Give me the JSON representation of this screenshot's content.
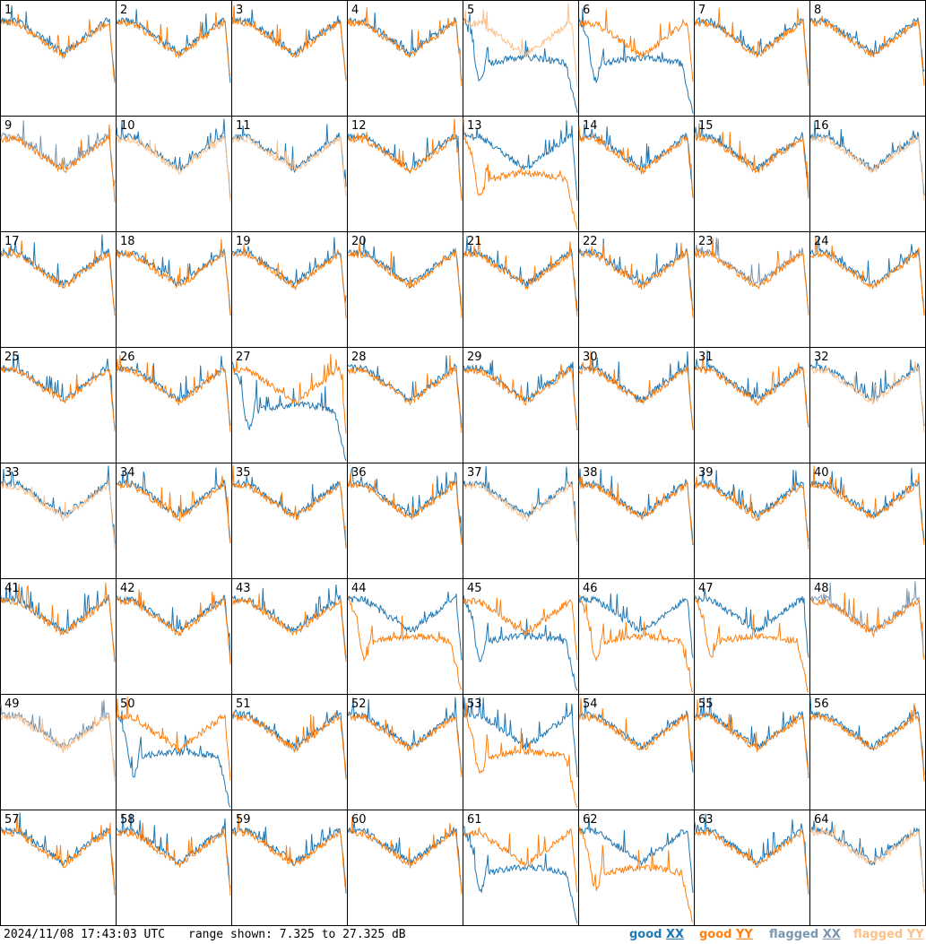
{
  "footer": {
    "timestamp": "2024/11/08 17:43:03 UTC",
    "range_text": "range shown: 7.325 to 27.325 dB"
  },
  "legend": {
    "good_xx": {
      "word": "good",
      "pol": "XX",
      "color": "#1f77b4"
    },
    "good_yy": {
      "word": "good",
      "pol": "YY",
      "color": "#ff7f0e"
    },
    "flagged_xx": {
      "word": "flagged",
      "pol": "XX",
      "color": "#7a96b0"
    },
    "flagged_yy": {
      "word": "flagged",
      "pol": "YY",
      "color": "#fdc08a"
    }
  },
  "chart_data": {
    "type": "line",
    "panels": 64,
    "layout": "8x8 grid",
    "y_range_db": [
      7.325,
      27.325
    ],
    "panel_labels": [
      "1",
      "2",
      "3",
      "4",
      "5",
      "6",
      "7",
      "8",
      "9",
      "10",
      "11",
      "12",
      "13",
      "14",
      "15",
      "16",
      "17",
      "18",
      "19",
      "20",
      "21",
      "22",
      "23",
      "24",
      "25",
      "26",
      "27",
      "28",
      "29",
      "30",
      "31",
      "32",
      "33",
      "34",
      "35",
      "36",
      "37",
      "38",
      "39",
      "40",
      "41",
      "42",
      "43",
      "44",
      "45",
      "46",
      "47",
      "48",
      "49",
      "50",
      "51",
      "52",
      "53",
      "54",
      "55",
      "56",
      "57",
      "58",
      "59",
      "60",
      "61",
      "62",
      "63",
      "64"
    ],
    "series": [
      {
        "name": "good XX",
        "color": "#1f77b4"
      },
      {
        "name": "good YY",
        "color": "#ff7f0e"
      },
      {
        "name": "flagged XX",
        "color": "#7a96b0"
      },
      {
        "name": "flagged YY",
        "color": "#fdc08a"
      }
    ],
    "flags": {
      "flagged_xx": [
        "9",
        "23",
        "48",
        "49"
      ],
      "flagged_yy": [
        "5",
        "10",
        "11",
        "16",
        "32",
        "33",
        "37",
        "49",
        "64"
      ]
    }
  }
}
